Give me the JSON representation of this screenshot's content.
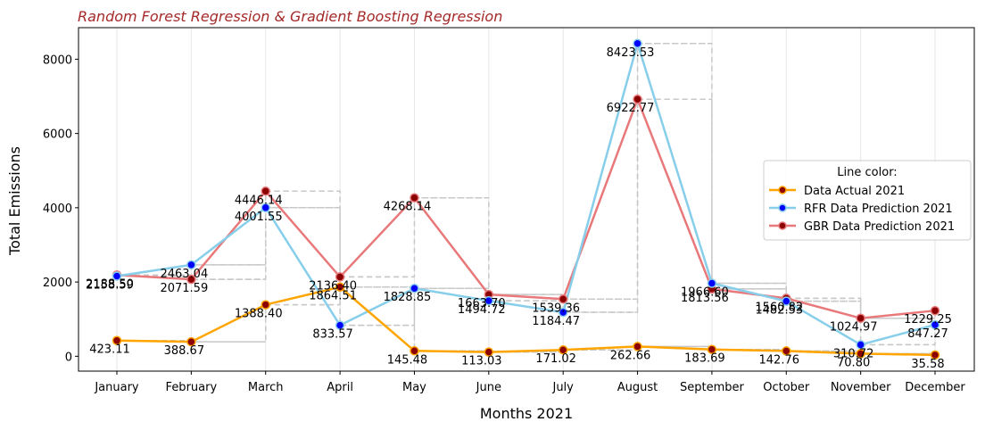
{
  "chart_data": {
    "type": "line",
    "title": "Random Forest Regression & Gradient Boosting Regression",
    "xlabel": "Months 2021",
    "ylabel": "Total Emissions",
    "categories": [
      "January",
      "February",
      "March",
      "April",
      "May",
      "June",
      "July",
      "August",
      "September",
      "October",
      "November",
      "December"
    ],
    "ylim": [
      -400,
      8850
    ],
    "yticks": [
      0,
      2000,
      4000,
      6000,
      8000
    ],
    "grid": "vertical",
    "legend": {
      "title": "Line color:",
      "placement": "center-right"
    },
    "series": [
      {
        "name": "Data Actual 2021",
        "color": "#ffa500",
        "marker_color": "#8b0000",
        "values": [
          423.11,
          388.67,
          1388.4,
          1864.51,
          145.48,
          113.03,
          171.02,
          262.66,
          183.69,
          142.76,
          70.8,
          35.58
        ],
        "labels": [
          "423.11",
          "388.67",
          "1388.40",
          "1864.51",
          "145.48",
          "113.03",
          "171.02",
          "262.66",
          "183.69",
          "142.76",
          "70.80",
          "35.58"
        ]
      },
      {
        "name": "RFR Data Prediction 2021",
        "color": "#87ceeb",
        "marker_color": "#0000ff",
        "values": [
          2158.59,
          2463.04,
          4001.55,
          833.57,
          1828.85,
          1494.72,
          1184.47,
          8423.53,
          1966.6,
          1482.53,
          310.72,
          847.27
        ],
        "labels": [
          "2158.59",
          "2463.04",
          "4001.55",
          "833.57",
          "1828.85",
          "1494.72",
          "1184.47",
          "8423.53",
          "1966.60",
          "1482.53",
          "310.72",
          "847.27"
        ]
      },
      {
        "name": "GBR Data Prediction 2021",
        "color": "#e8787a",
        "marker_color": "#8b0000",
        "values": [
          2188.5,
          2071.59,
          4446.14,
          2136.4,
          4268.14,
          1663.7,
          1539.36,
          6922.77,
          1813.56,
          1560.82,
          1024.97,
          1229.25
        ],
        "labels": [
          "2188.50",
          "2071.59",
          "4446.14",
          "2136.40",
          "4268.14",
          "1663.70",
          "1539.36",
          "6922.77",
          "1813.56",
          "1560.82",
          "1024.97",
          "1229.25"
        ]
      }
    ]
  }
}
